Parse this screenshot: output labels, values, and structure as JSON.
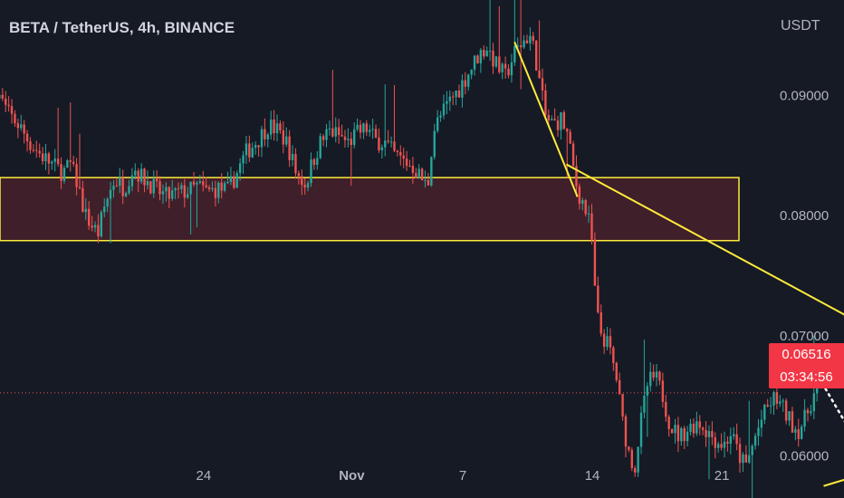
{
  "header": {
    "title": "BETA / TetherUS, 4h, BINANCE",
    "currency": "USDT"
  },
  "last_price": {
    "value": "0.06516",
    "countdown": "03:34:56",
    "color": "#f23645"
  },
  "colors": {
    "background": "#161a25",
    "up": "#26a69a",
    "down": "#ef5350",
    "zone_fill": "#3f1f2a",
    "zone_border": "#ffeb3b",
    "trendline": "#ffeb3b",
    "projection": "#ffffff"
  },
  "chart_data": {
    "type": "candlestick",
    "ylim": [
      0.0564,
      0.0979
    ],
    "y_ticks": [
      "0.09000",
      "0.08000",
      "0.07000",
      "0.06000"
    ],
    "y_tick_values": [
      0.09,
      0.08,
      0.07,
      0.06
    ],
    "x_ticks": [
      {
        "label": "24",
        "day": 24
      },
      {
        "label": "Nov",
        "day": 32
      },
      {
        "label": "7",
        "day": 38
      },
      {
        "label": "14",
        "day": 45
      },
      {
        "label": "21",
        "day": 52
      }
    ],
    "x_range_days": [
      12.8,
      58.6
    ],
    "candle_interval_days": 0.1667,
    "close_path": [
      [
        12.8,
        0.0905
      ],
      [
        13.4,
        0.0885
      ],
      [
        14.0,
        0.0875
      ],
      [
        14.6,
        0.086
      ],
      [
        15.2,
        0.085
      ],
      [
        15.8,
        0.0842
      ],
      [
        16.4,
        0.0835
      ],
      [
        16.8,
        0.0842
      ],
      [
        17.2,
        0.0825
      ],
      [
        17.6,
        0.08
      ],
      [
        18.0,
        0.079
      ],
      [
        18.3,
        0.0785
      ],
      [
        18.7,
        0.081
      ],
      [
        19.2,
        0.083
      ],
      [
        19.7,
        0.0822
      ],
      [
        20.2,
        0.084
      ],
      [
        20.6,
        0.0832
      ],
      [
        21.0,
        0.0828
      ],
      [
        21.5,
        0.082
      ],
      [
        22.0,
        0.0815
      ],
      [
        22.6,
        0.0818
      ],
      [
        23.2,
        0.082
      ],
      [
        23.7,
        0.0824
      ],
      [
        24.2,
        0.0819
      ],
      [
        24.8,
        0.0822
      ],
      [
        25.3,
        0.082
      ],
      [
        25.8,
        0.0835
      ],
      [
        26.3,
        0.0852
      ],
      [
        26.9,
        0.0862
      ],
      [
        27.5,
        0.0875
      ],
      [
        28.0,
        0.087
      ],
      [
        28.5,
        0.086
      ],
      [
        29.0,
        0.0835
      ],
      [
        29.5,
        0.0825
      ],
      [
        29.9,
        0.0845
      ],
      [
        30.3,
        0.086
      ],
      [
        30.8,
        0.087
      ],
      [
        31.3,
        0.0866
      ],
      [
        31.8,
        0.086
      ],
      [
        32.3,
        0.0868
      ],
      [
        32.8,
        0.0872
      ],
      [
        33.3,
        0.0862
      ],
      [
        33.8,
        0.086
      ],
      [
        34.3,
        0.085
      ],
      [
        34.8,
        0.0845
      ],
      [
        35.3,
        0.084
      ],
      [
        35.8,
        0.083
      ],
      [
        36.1,
        0.0822
      ],
      [
        36.4,
        0.087
      ],
      [
        36.8,
        0.0882
      ],
      [
        37.3,
        0.0895
      ],
      [
        37.8,
        0.0905
      ],
      [
        38.3,
        0.0918
      ],
      [
        38.8,
        0.0932
      ],
      [
        39.3,
        0.094
      ],
      [
        39.8,
        0.0925
      ],
      [
        40.3,
        0.0915
      ],
      [
        40.8,
        0.0935
      ],
      [
        41.3,
        0.0945
      ],
      [
        41.6,
        0.095
      ],
      [
        41.9,
        0.0935
      ],
      [
        42.2,
        0.0905
      ],
      [
        42.5,
        0.088
      ],
      [
        42.9,
        0.0875
      ],
      [
        43.3,
        0.088
      ],
      [
        43.6,
        0.087
      ],
      [
        43.9,
        0.0845
      ],
      [
        44.2,
        0.082
      ],
      [
        44.5,
        0.081
      ],
      [
        44.8,
        0.0795
      ],
      [
        45.0,
        0.0775
      ],
      [
        45.2,
        0.072
      ],
      [
        45.5,
        0.07
      ],
      [
        45.9,
        0.069
      ],
      [
        46.3,
        0.0665
      ],
      [
        46.6,
        0.063
      ],
      [
        47.0,
        0.06
      ],
      [
        47.3,
        0.059
      ],
      [
        47.6,
        0.0625
      ],
      [
        48.0,
        0.066
      ],
      [
        48.4,
        0.0665
      ],
      [
        48.8,
        0.065
      ],
      [
        49.2,
        0.0625
      ],
      [
        49.7,
        0.0615
      ],
      [
        50.2,
        0.0622
      ],
      [
        50.7,
        0.0628
      ],
      [
        51.2,
        0.062
      ],
      [
        51.7,
        0.0612
      ],
      [
        52.1,
        0.0608
      ],
      [
        52.5,
        0.0618
      ],
      [
        52.9,
        0.06
      ],
      [
        53.3,
        0.059
      ],
      [
        53.7,
        0.061
      ],
      [
        54.1,
        0.0628
      ],
      [
        54.5,
        0.064
      ],
      [
        54.9,
        0.0648
      ],
      [
        55.3,
        0.0638
      ],
      [
        55.7,
        0.0628
      ],
      [
        56.1,
        0.062
      ],
      [
        56.5,
        0.063
      ],
      [
        56.9,
        0.0648
      ],
      [
        57.2,
        0.0655
      ],
      [
        57.4,
        0.06516
      ]
    ],
    "zone": {
      "day_from": 12.8,
      "day_to": 70.2,
      "price_low": 0.07785,
      "price_high": 0.0831
    },
    "trendlines": [
      {
        "from": [
          40.8,
          0.0944
        ],
        "to": [
          44.2,
          0.0815
        ]
      },
      {
        "from": [
          43.6,
          0.0842
        ],
        "to": [
          70.0,
          0.0622
        ]
      },
      {
        "from": [
          57.5,
          0.0574
        ],
        "to": [
          69.3,
          0.0629
        ]
      }
    ],
    "projection_path": [
      [
        57.6,
        0.0655
      ],
      [
        59.2,
        0.0613
      ],
      [
        60.4,
        0.0697
      ],
      [
        61.3,
        0.0664
      ],
      [
        62.5,
        0.0815
      ],
      [
        63.1,
        0.0831
      ],
      [
        63.6,
        0.082
      ]
    ],
    "last_price_value": 0.06516
  }
}
